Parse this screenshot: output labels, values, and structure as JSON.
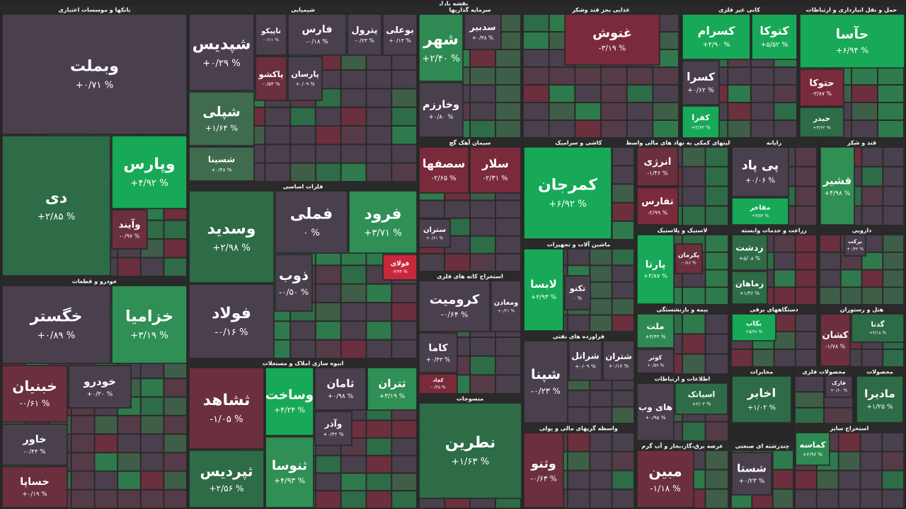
{
  "header": {
    "title": "نقشه بازار"
  },
  "chart_data": {
    "type": "treemap",
    "sectors": [
      {
        "name": "بانکها و موسسات اعتباری",
        "tiles": [
          {
            "name": "وبملت",
            "change": "+۰/۷۱ %",
            "color": "#4a3f4c"
          },
          {
            "name": "دی",
            "change": "+۲/۸۵ %",
            "color": "#2e6b47"
          },
          {
            "name": "وپارس",
            "change": "+۴/۹۲ %",
            "color": "#17a957"
          },
          {
            "name": "وآیند",
            "change": "-۰/۹۷ %",
            "color": "#6b2f3e"
          }
        ]
      },
      {
        "name": "خودرو و قطعات",
        "tiles": [
          {
            "name": "خگستر",
            "change": "+۰/۸۹ %",
            "color": "#4a3f4c"
          },
          {
            "name": "خزامیا",
            "change": "+۳/۱۹ %",
            "color": "#2f8f54"
          },
          {
            "name": "خبنیان",
            "change": "-۰/۶۱ %",
            "color": "#6b2f3e"
          },
          {
            "name": "خودرو",
            "change": "+۰/۲۰ %",
            "color": "#4a3f4c"
          },
          {
            "name": "خاور",
            "change": "-۰/۴۴ %",
            "color": "#4a3f4c"
          },
          {
            "name": "خساپا",
            "change": "+۰/۱۹ %",
            "color": "#6b2f3e"
          }
        ]
      },
      {
        "name": "شیمیایی",
        "tiles": [
          {
            "name": "شپدیس",
            "change": "+۰/۲۹ %",
            "color": "#4a3f4c"
          },
          {
            "name": "شپلی",
            "change": "+۱/۶۴ %",
            "color": "#3f6b4e"
          },
          {
            "name": "شسینا",
            "change": "+۰/۴۸ %",
            "color": "#3f6b4e"
          },
          {
            "name": "تاپیکو",
            "change": "-۰/۱۱ %",
            "color": "#4a3f4c"
          },
          {
            "name": "فارس",
            "change": "-۰/۱۸ %",
            "color": "#4a3f4c"
          },
          {
            "name": "پترول",
            "change": "-۰/۲۳ %",
            "color": "#4a3f4c"
          },
          {
            "name": "بوعلی",
            "change": "+۰/۱۳ %",
            "color": "#4a3f4c"
          },
          {
            "name": "پاکشو",
            "change": "-۰/۵۳ %",
            "color": "#6b2f3e"
          },
          {
            "name": "پارسان",
            "change": "+۰/۰۹ %",
            "color": "#4a3f4c"
          }
        ]
      },
      {
        "name": "فلزات اساسی",
        "tiles": [
          {
            "name": "وسدید",
            "change": "+۲/۹۸ %",
            "color": "#2e6b47"
          },
          {
            "name": "فملی",
            "change": "۰ %",
            "color": "#4a3f4c"
          },
          {
            "name": "فرود",
            "change": "+۳/۷۱ %",
            "color": "#2f8f54"
          },
          {
            "name": "فولاد",
            "change": "-۰/۱۶ %",
            "color": "#4a3f4c"
          },
          {
            "name": "ذوب",
            "change": "-۰/۵۰ %",
            "color": "#4a3f4c"
          },
          {
            "name": "فولای",
            "change": "-۴/۹۴ %",
            "color": "#c8283c"
          }
        ]
      },
      {
        "name": "انبوه سازی املاک و مستغلات",
        "tiles": [
          {
            "name": "ثشاهد",
            "change": "-۱/۰۵ %",
            "color": "#6b2f3e"
          },
          {
            "name": "ثپردیس",
            "change": "+۲/۵۶ %",
            "color": "#2e6b47"
          },
          {
            "name": "وساخت",
            "change": "+۴/۲۴ %",
            "color": "#17a957"
          },
          {
            "name": "ثنوسا",
            "change": "+۴/۹۳ %",
            "color": "#2f8f54"
          },
          {
            "name": "ثامان",
            "change": "+۰/۹۸ %",
            "color": "#4a3f4c"
          },
          {
            "name": "ثتران",
            "change": "+۳/۱۹ %",
            "color": "#2f8f54"
          },
          {
            "name": "وآذر",
            "change": "+۰/۴۲ %",
            "color": "#4a3f4c"
          }
        ]
      },
      {
        "name": "سرمایه گذاریها",
        "tiles": [
          {
            "name": "شهر",
            "change": "+۲/۴۰ %",
            "color": "#2e8a52"
          },
          {
            "name": "وخارزم",
            "change": "+۰/۸۰ %",
            "color": "#4a3f4c"
          },
          {
            "name": "سدبیر",
            "change": "+۰/۳۸ %",
            "color": "#4a3f4c"
          }
        ]
      },
      {
        "name": "سیمان آهک گچ",
        "tiles": [
          {
            "name": "سصفها",
            "change": "-۲/۶۵ %",
            "color": "#7a2a3a"
          },
          {
            "name": "سلار",
            "change": "-۲/۳۱ %",
            "color": "#7a2a3a"
          },
          {
            "name": "ستران",
            "change": "+۰/۶۱ %",
            "color": "#4a3f4c"
          }
        ]
      },
      {
        "name": "استخراج کانه های فلزی",
        "tiles": [
          {
            "name": "کرومیت",
            "change": "-۰/۶۴ %",
            "color": "#4a3f4c"
          },
          {
            "name": "ومعادن",
            "change": "+۰/۲۱ %",
            "color": "#4a3f4c"
          },
          {
            "name": "کاما",
            "change": "+۰/۴۳ %",
            "color": "#4a3f4c"
          },
          {
            "name": "کچاد",
            "change": "-۰/۴۵ %",
            "color": "#7a2a3a"
          }
        ]
      },
      {
        "name": "منسوجات",
        "tiles": [
          {
            "name": "نطرین",
            "change": "+۱/۶۳ %",
            "color": "#2e6b47"
          }
        ]
      },
      {
        "name": "غذایی بجز قند وشکر",
        "tiles": [
          {
            "name": "غنوش",
            "change": "-۳/۱۹ %",
            "color": "#7a2a3a"
          }
        ]
      },
      {
        "name": "کانی غیر فلزی",
        "tiles": [
          {
            "name": "کسرام",
            "change": "+۴/۹۰ %",
            "color": "#17a957"
          },
          {
            "name": "کتوکا",
            "change": "+۵/۵۲ %",
            "color": "#17a957"
          },
          {
            "name": "کسرا",
            "change": "+۰/۶۲ %",
            "color": "#4a3f4c"
          },
          {
            "name": "کفرا",
            "change": "+۳/۶۲ %",
            "color": "#17a957"
          }
        ]
      },
      {
        "name": "حمل و نقل انبارداری و ارتباطات",
        "tiles": [
          {
            "name": "حآسا",
            "change": "+۶/۹۴ %",
            "color": "#17a957"
          },
          {
            "name": "حتوکا",
            "change": "-۳/۸۷ %",
            "color": "#7a2a3a"
          },
          {
            "name": "حیدر",
            "change": "+۳/۶۲ %",
            "color": "#2e6b47"
          }
        ]
      },
      {
        "name": "کاشی و سرامیک",
        "tiles": [
          {
            "name": "کمرجان",
            "change": "+۶/۹۲ %",
            "color": "#17a957"
          }
        ]
      },
      {
        "name": "ماشین آلات و تجهیزات",
        "tiles": [
          {
            "name": "لابسا",
            "change": "+۴/۹۳ %",
            "color": "#17a957"
          },
          {
            "name": "تکنو",
            "change": "۰ %",
            "color": "#4a3f4c"
          }
        ]
      },
      {
        "name": "فراورده های نفتی",
        "tiles": [
          {
            "name": "شپنا",
            "change": "-۰/۲۳ %",
            "color": "#4a3f4c"
          },
          {
            "name": "شراتل",
            "change": "+۰/۰۹ %",
            "color": "#4a3f4c"
          },
          {
            "name": "شتران",
            "change": "+۰/۱۷ %",
            "color": "#4a3f4c"
          }
        ]
      },
      {
        "name": "واسطه گریهای مالی و پولی",
        "tiles": [
          {
            "name": "وثنو",
            "change": "-۰/۶۳ %",
            "color": "#6b2f3e"
          }
        ]
      },
      {
        "name": "فعالیتهای کمکی به نهاد های مالی واسط",
        "tiles": [
          {
            "name": "انرژی",
            "change": "-۱/۴۶ %",
            "color": "#6b2f3e"
          },
          {
            "name": "تفارس",
            "change": "-۲/۹۹ %",
            "color": "#7a2a3a"
          }
        ]
      },
      {
        "name": "رایانه",
        "tiles": [
          {
            "name": "پی پاد",
            "change": "+۰/۰۶ %",
            "color": "#4a3f4c"
          },
          {
            "name": "مفاخر",
            "change": "+۳/۵۴ %",
            "color": "#17a957"
          }
        ]
      },
      {
        "name": "قند و شکر",
        "tiles": [
          {
            "name": "قشیر",
            "change": "+۴/۹۸ %",
            "color": "#2f8f54"
          }
        ]
      },
      {
        "name": "لاستیک و پلاستیک",
        "tiles": [
          {
            "name": "پارتا",
            "change": "+۴/۸۷ %",
            "color": "#17a957"
          },
          {
            "name": "پکرمان",
            "change": "-۰/۸۶ %",
            "color": "#6b2f3e"
          }
        ]
      },
      {
        "name": "زراعت و خدمات وابسته",
        "tiles": [
          {
            "name": "زدشت",
            "change": "+۵/۰۸ %",
            "color": "#2e6b47"
          },
          {
            "name": "زماهان",
            "change": "+۱/۳۶ %",
            "color": "#2e6b47"
          }
        ]
      },
      {
        "name": "دارویی",
        "tiles": [
          {
            "name": "برکت",
            "change": "+۰/۳۲ %",
            "color": "#4a3f4c"
          }
        ]
      },
      {
        "name": "بیمه و بازنشستگی",
        "tiles": [
          {
            "name": "ملت",
            "change": "+۳/۴۴ %",
            "color": "#2e8a52"
          },
          {
            "name": "کوثر",
            "change": "+۰/۵۷ %",
            "color": "#4a3f4c"
          }
        ]
      },
      {
        "name": "دستگاههای برقی",
        "tiles": [
          {
            "name": "بکاب",
            "change": "+۵/۳۸ %",
            "color": "#17a957"
          }
        ]
      },
      {
        "name": "هتل و رستوران",
        "tiles": [
          {
            "name": "کشان",
            "change": "-۱/۷۸ %",
            "color": "#6b2f3e"
          },
          {
            "name": "گدنا",
            "change": "+۲/۱۸ %",
            "color": "#2e6b47"
          }
        ]
      },
      {
        "name": "اطلاعات و ارتباطات",
        "tiles": [
          {
            "name": "های وب",
            "change": "+۰/۹۵ %",
            "color": "#4a3f4c"
          },
          {
            "name": "اسیاتک",
            "change": "+۲/۰۳ %",
            "color": "#2e6b47"
          }
        ]
      },
      {
        "name": "مخابرات",
        "tiles": [
          {
            "name": "اخابر",
            "change": "+۱/۰۲ %",
            "color": "#2e6b47"
          }
        ]
      },
      {
        "name": "محصولات فلزی",
        "tiles": [
          {
            "name": "فارک",
            "change": "+۰/۶۰ %",
            "color": "#4a3f4c"
          }
        ]
      },
      {
        "name": "محصولات",
        "tiles": [
          {
            "name": "مادیرا",
            "change": "+۱/۲۵ %",
            "color": "#2e6b47"
          }
        ]
      },
      {
        "name": "عرضه برق،گاز،بخار و آب گرم",
        "tiles": [
          {
            "name": "مبین",
            "change": "-۱/۱۸ %",
            "color": "#6b2f3e"
          }
        ]
      },
      {
        "name": "چندرشته ای صنعتی",
        "tiles": [
          {
            "name": "شستا",
            "change": "+۰/۲۳ %",
            "color": "#4a3f4c"
          }
        ]
      },
      {
        "name": "استخراج سایر",
        "tiles": [
          {
            "name": "کماسه",
            "change": "+۲/۹۶ %",
            "color": "#2e8a52"
          }
        ]
      }
    ]
  }
}
